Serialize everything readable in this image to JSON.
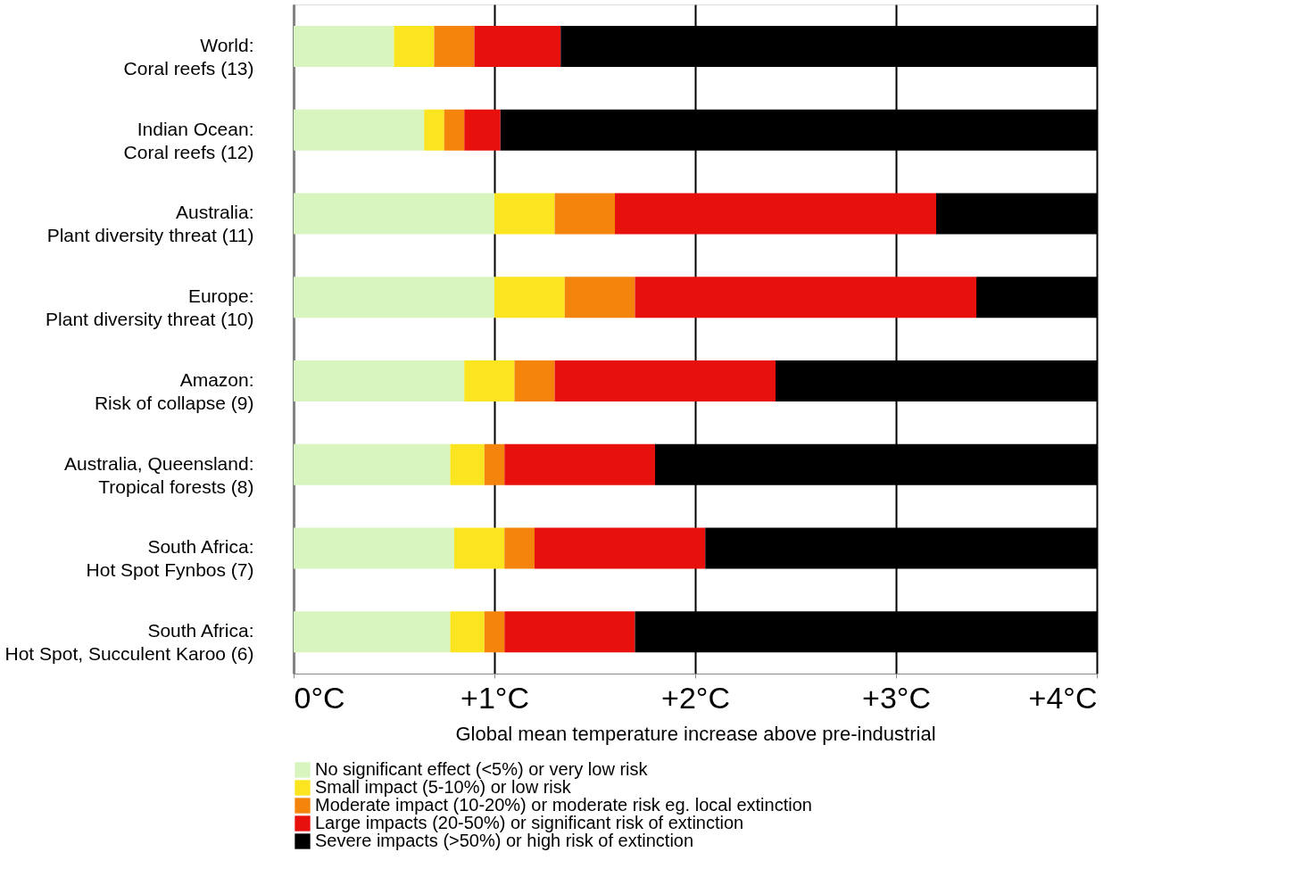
{
  "chart_data": {
    "type": "bar",
    "orientation": "horizontal",
    "stacked": true,
    "categories": [
      "World:\nCoral reefs (13)",
      "Indian Ocean:\nCoral reefs (12)",
      "Australia:\nPlant diversity threat (11)",
      "Europe:\nPlant diversity threat (10)",
      "Amazon:\nRisk of collapse (9)",
      "Australia, Queensland:\nTropical forests (8)",
      "South Africa:\nHot Spot Fynbos  (7)",
      "South Africa:\nHot Spot, Succulent Karoo (6)"
    ],
    "series": [
      {
        "name": "No significant effect (<5%) or very low risk",
        "color": "#d8f5c0",
        "values": [
          0.5,
          0.65,
          1.0,
          1.0,
          0.85,
          0.78,
          0.8,
          0.78
        ]
      },
      {
        "name": "Small impact (5-10%) or low risk",
        "color": "#fbe520",
        "values": [
          0.2,
          0.1,
          0.3,
          0.35,
          0.25,
          0.17,
          0.25,
          0.17
        ]
      },
      {
        "name": "Moderate impact (10-20%) or moderate risk eg. local extinction",
        "color": "#f5840c",
        "values": [
          0.2,
          0.1,
          0.3,
          0.35,
          0.2,
          0.1,
          0.15,
          0.1
        ]
      },
      {
        "name": "Large impacts (20-50%) or significant risk of extinction",
        "color": "#e8100c",
        "values": [
          0.43,
          0.18,
          1.6,
          1.7,
          1.1,
          0.75,
          0.85,
          0.65
        ]
      },
      {
        "name": "Severe impacts (>50%) or high risk of extinction",
        "color": "#000000",
        "values": [
          2.67,
          2.97,
          0.8,
          0.6,
          1.6,
          2.2,
          1.95,
          2.3
        ]
      }
    ],
    "xlabel": "Global mean temperature increase above pre-industrial",
    "xlim": [
      0,
      4
    ],
    "xticks": [
      {
        "value": 0,
        "label": "0°C"
      },
      {
        "value": 1,
        "label": "+1°C"
      },
      {
        "value": 2,
        "label": "+2°C"
      },
      {
        "value": 3,
        "label": "+3°C"
      },
      {
        "value": 4,
        "label": "+4°C"
      }
    ],
    "grid": "x",
    "legend": "bottom"
  }
}
